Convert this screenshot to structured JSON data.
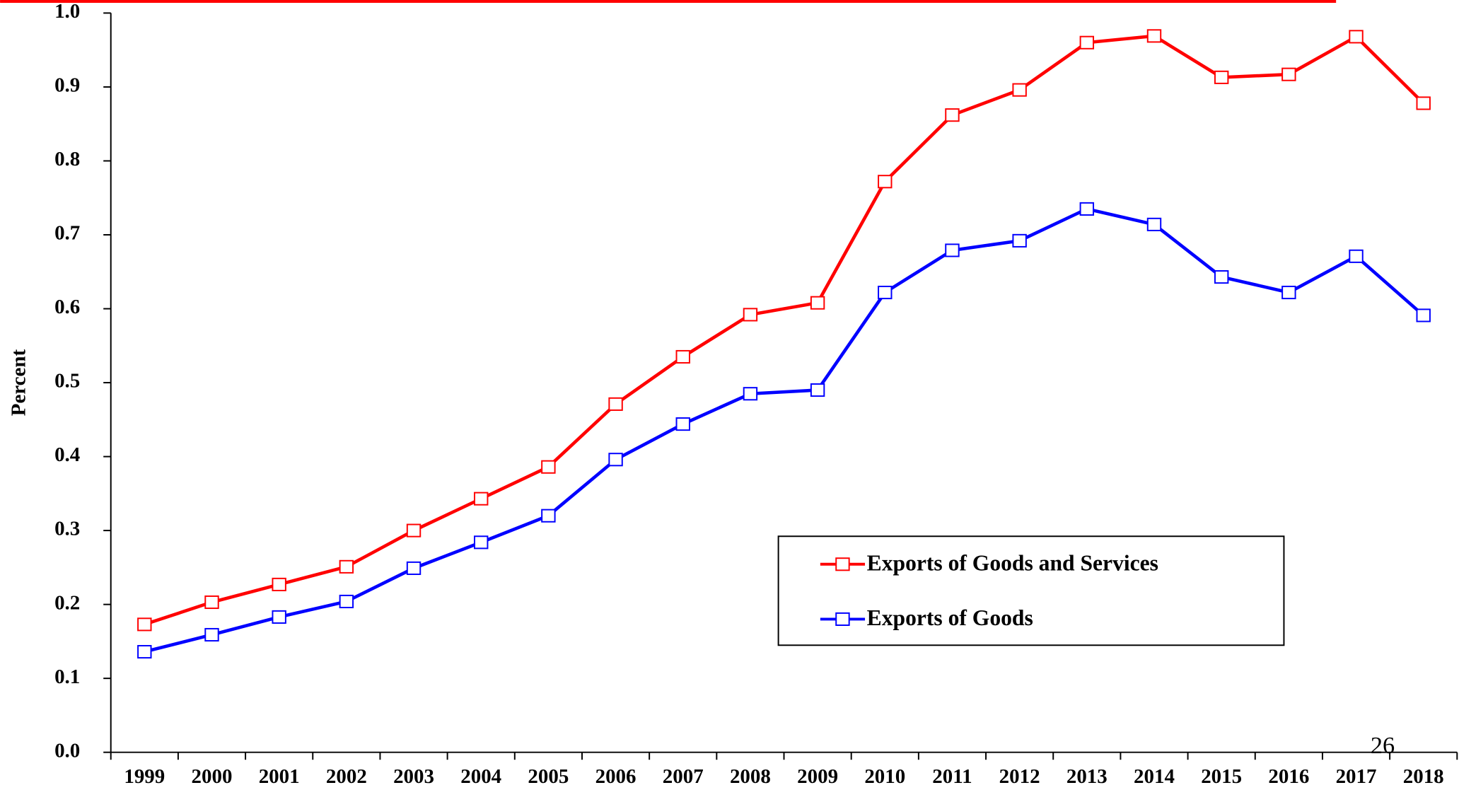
{
  "chart_data": {
    "type": "line",
    "y_label": "Percent",
    "page_number": "26",
    "categories": [
      "1999",
      "2000",
      "2001",
      "2002",
      "2003",
      "2004",
      "2005",
      "2006",
      "2007",
      "2008",
      "2009",
      "2010",
      "2011",
      "2012",
      "2013",
      "2014",
      "2015",
      "2016",
      "2017",
      "2018"
    ],
    "series": [
      {
        "name": "Exports of Goods and Services",
        "color": "#ff0000",
        "values": [
          0.173,
          0.203,
          0.227,
          0.251,
          0.3,
          0.343,
          0.386,
          0.471,
          0.535,
          0.592,
          0.608,
          0.772,
          0.862,
          0.896,
          0.96,
          0.969,
          0.913,
          0.917,
          0.968,
          0.878
        ]
      },
      {
        "name": "Exports of Goods",
        "color": "#0000ff",
        "values": [
          0.136,
          0.159,
          0.183,
          0.204,
          0.249,
          0.284,
          0.32,
          0.396,
          0.444,
          0.485,
          0.49,
          0.622,
          0.679,
          0.692,
          0.735,
          0.714,
          0.643,
          0.622,
          0.671,
          0.591
        ]
      }
    ],
    "ylim": [
      0,
      1
    ],
    "yticks": [
      {
        "value": 0,
        "label": "0.0"
      },
      0.1,
      0.2,
      0.3,
      0.4,
      0.5,
      0.6,
      0.7,
      0.8,
      0.9,
      {
        "value": 1,
        "label": "1.0"
      }
    ],
    "grid": false,
    "legend": "lower right"
  }
}
